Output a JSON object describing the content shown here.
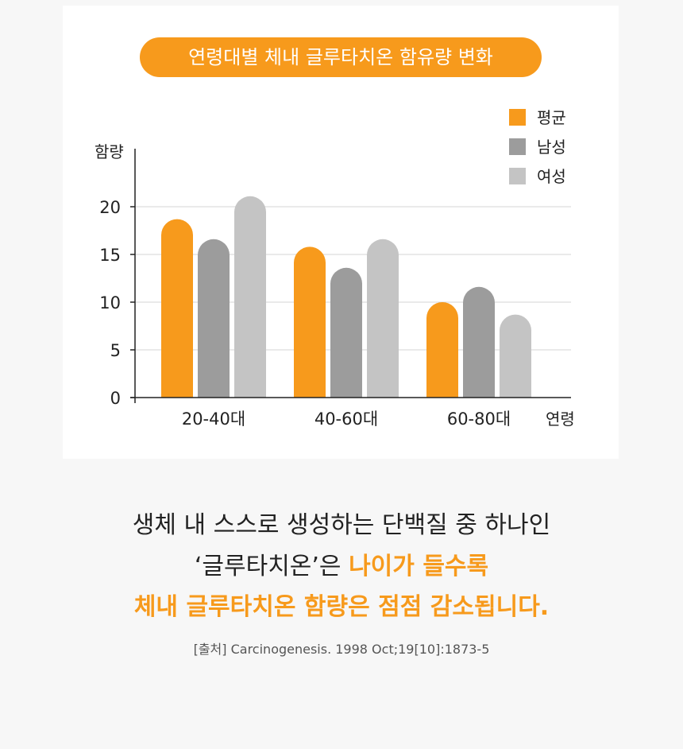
{
  "chart_data": {
    "type": "bar",
    "title": "연령대별 체내 글루타치온 함유량 변화",
    "ylabel": "함량",
    "xlabel": "연령",
    "categories": [
      "20-40대",
      "40-60대",
      "60-80대"
    ],
    "series": [
      {
        "name": "평균",
        "color": "#f79a1c",
        "values": [
          18.7,
          15.8,
          10.0
        ]
      },
      {
        "name": "남성",
        "color": "#9c9c9c",
        "values": [
          16.6,
          13.6,
          11.6
        ]
      },
      {
        "name": "여성",
        "color": "#c4c4c4",
        "values": [
          21.1,
          16.6,
          8.7
        ]
      }
    ],
    "ylim": [
      0,
      20
    ],
    "yticks": [
      0,
      5,
      10,
      15,
      20
    ],
    "ytick_labels": [
      "0",
      "5",
      "10",
      "15",
      "20"
    ],
    "grid": true,
    "legend": "top-right"
  },
  "caption": {
    "line1": "생체 내 스스로 생성하는 단백질 중 하나인",
    "line2_prefix": "‘글루타치온’은 ",
    "line2_highlight": "나이가 들수록",
    "line3": "체내 글루타치온 함량은 점점 감소됩니다."
  },
  "source": "[출처] Carcinogenesis. 1998 Oct;19[10]:1873-5"
}
